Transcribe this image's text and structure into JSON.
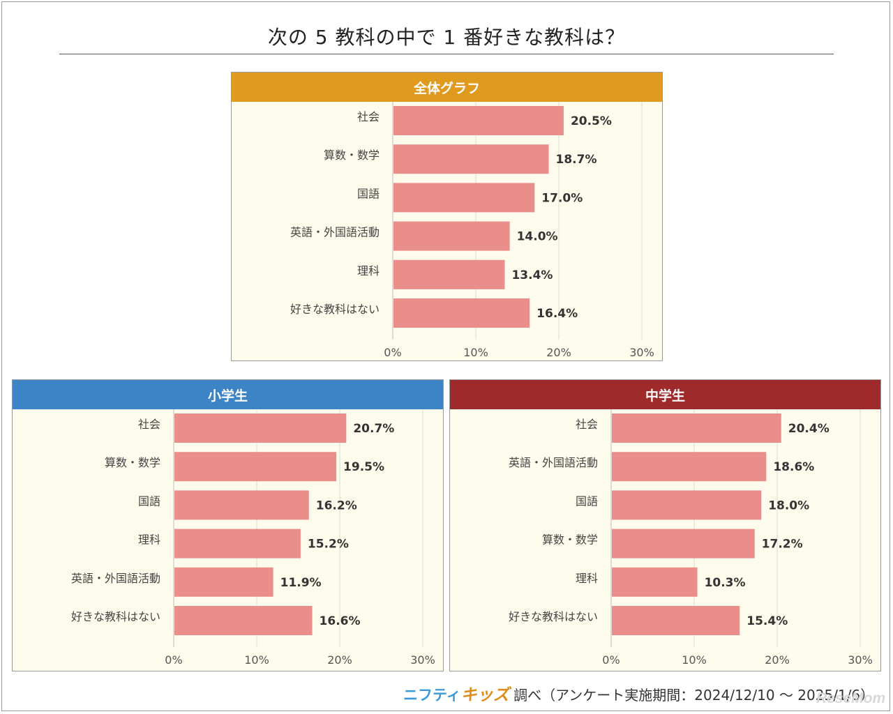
{
  "title": "次の 5 教科の中で 1 番好きな教科は？",
  "chart_data": [
    {
      "type": "bar",
      "orientation": "horizontal",
      "title": "全体グラフ",
      "header_color": "#e09a1e",
      "bar_color": "#ea8e8c",
      "categories": [
        "社会",
        "算数・数学",
        "国語",
        "英語・外国語活動",
        "理科",
        "好きな教科はない"
      ],
      "values": [
        20.5,
        18.7,
        17.0,
        14.0,
        13.4,
        16.4
      ],
      "value_labels": [
        "20.5%",
        "18.7%",
        "17.0%",
        "14.0%",
        "13.4%",
        "16.4%"
      ],
      "xlim": [
        0,
        30
      ],
      "ticks": [
        "0%",
        "10%",
        "20%",
        "30%"
      ],
      "grid": true
    },
    {
      "type": "bar",
      "orientation": "horizontal",
      "title": "小学生",
      "header_color": "#3d84c6",
      "bar_color": "#ea8e8c",
      "categories": [
        "社会",
        "算数・数学",
        "国語",
        "理科",
        "英語・外国語活動",
        "好きな教科はない"
      ],
      "values": [
        20.7,
        19.5,
        16.2,
        15.2,
        11.9,
        16.6
      ],
      "value_labels": [
        "20.7%",
        "19.5%",
        "16.2%",
        "15.2%",
        "11.9%",
        "16.6%"
      ],
      "xlim": [
        0,
        30
      ],
      "ticks": [
        "0%",
        "10%",
        "20%",
        "30%"
      ],
      "grid": true
    },
    {
      "type": "bar",
      "orientation": "horizontal",
      "title": "中学生",
      "header_color": "#9e2a2b",
      "bar_color": "#ea8e8c",
      "categories": [
        "社会",
        "英語・外国語活動",
        "国語",
        "算数・数学",
        "理科",
        "好きな教科はない"
      ],
      "values": [
        20.4,
        18.6,
        18.0,
        17.2,
        10.3,
        15.4
      ],
      "value_labels": [
        "20.4%",
        "18.6%",
        "18.0%",
        "17.2%",
        "10.3%",
        "15.4%"
      ],
      "xlim": [
        0,
        30
      ],
      "ticks": [
        "0%",
        "10%",
        "20%",
        "30%"
      ],
      "grid": true
    }
  ],
  "footer": {
    "brand_nifty": "ニフティ",
    "brand_kids": "キッズ",
    "source_text": "調べ（アンケート実施期間：2024/12/10 ～ 2025/1/6）"
  },
  "watermark": "ReseMom"
}
